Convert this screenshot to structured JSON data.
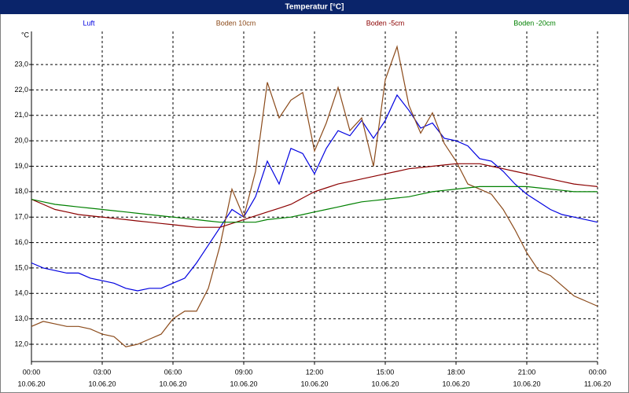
{
  "chart_data": {
    "type": "line",
    "title": "Temperatur [°C]",
    "y_label": "°C",
    "x": [
      0,
      0.5,
      1,
      1.5,
      2,
      2.5,
      3,
      3.5,
      4,
      4.5,
      5,
      5.5,
      6,
      6.5,
      7,
      7.5,
      8,
      8.5,
      9,
      9.5,
      10,
      10.5,
      11,
      11.5,
      12,
      12.5,
      13,
      13.5,
      14,
      14.5,
      15,
      15.5,
      16,
      16.5,
      17,
      17.5,
      18,
      18.5,
      19,
      19.5,
      20,
      20.5,
      21,
      21.5,
      22,
      22.5,
      23,
      23.5,
      24
    ],
    "xlim": [
      0,
      24
    ],
    "xticks": [
      {
        "value": 0,
        "label": "00:00"
      },
      {
        "value": 3,
        "label": "03:00"
      },
      {
        "value": 6,
        "label": "06:00"
      },
      {
        "value": 9,
        "label": "09:00"
      },
      {
        "value": 12,
        "label": "12:00"
      },
      {
        "value": 15,
        "label": "15:00"
      },
      {
        "value": 18,
        "label": "18:00"
      },
      {
        "value": 21,
        "label": "21:00"
      },
      {
        "value": 24,
        "label": "00:00"
      }
    ],
    "xtick_dates": [
      "10.06.20",
      "10.06.20",
      "10.06.20",
      "10.06.20",
      "10.06.20",
      "10.06.20",
      "10.06.20",
      "10.06.20",
      "11.06.20"
    ],
    "ylim": [
      11.32,
      24.3
    ],
    "yticks": [
      {
        "value": 12,
        "label": "12,0"
      },
      {
        "value": 13,
        "label": "13,0"
      },
      {
        "value": 14,
        "label": "14,0"
      },
      {
        "value": 15,
        "label": "15,0"
      },
      {
        "value": 16,
        "label": "16,0"
      },
      {
        "value": 17,
        "label": "17,0"
      },
      {
        "value": 18,
        "label": "18,0"
      },
      {
        "value": 19,
        "label": "19,0"
      },
      {
        "value": 20,
        "label": "20,0"
      },
      {
        "value": 21,
        "label": "21,0"
      },
      {
        "value": 22,
        "label": "22,0"
      },
      {
        "value": 23,
        "label": "23,0"
      }
    ],
    "grid": true,
    "series": [
      {
        "name": "Luft",
        "color": "#0000e0",
        "values": [
          15.2,
          15.0,
          14.9,
          14.8,
          14.8,
          14.6,
          14.5,
          14.4,
          14.2,
          14.1,
          14.2,
          14.2,
          14.4,
          14.6,
          15.2,
          15.9,
          16.6,
          17.3,
          17.0,
          17.8,
          19.2,
          18.3,
          19.7,
          19.5,
          18.7,
          19.7,
          20.4,
          20.2,
          20.8,
          20.1,
          20.8,
          21.8,
          21.2,
          20.5,
          20.7,
          20.1,
          20.0,
          19.8,
          19.3,
          19.2,
          18.8,
          18.3,
          17.9,
          17.6,
          17.3,
          17.1,
          17.0,
          16.9,
          16.8
        ]
      },
      {
        "name": "Boden 10cm",
        "color": "#8b4a1a",
        "values": [
          12.7,
          12.9,
          12.8,
          12.7,
          12.7,
          12.6,
          12.4,
          12.3,
          11.9,
          12.0,
          12.2,
          12.4,
          13.0,
          13.3,
          13.3,
          14.2,
          15.9,
          18.1,
          17.0,
          18.8,
          22.3,
          20.9,
          21.6,
          21.9,
          19.6,
          20.7,
          22.1,
          20.4,
          20.9,
          19.0,
          22.4,
          23.7,
          21.4,
          20.3,
          21.1,
          19.9,
          19.2,
          18.3,
          18.1,
          17.9,
          17.3,
          16.5,
          15.6,
          14.9,
          14.7,
          14.3,
          13.9,
          13.7,
          13.5
        ]
      },
      {
        "name": "Boden -5cm",
        "color": "#8b0000",
        "values": [
          17.7,
          17.5,
          17.3,
          17.2,
          17.1,
          17.05,
          17.0,
          16.95,
          16.9,
          16.85,
          16.8,
          16.75,
          16.7,
          16.65,
          16.6,
          16.6,
          16.6,
          16.75,
          16.9,
          17.05,
          17.2,
          17.35,
          17.5,
          17.75,
          18.0,
          18.15,
          18.3,
          18.4,
          18.5,
          18.6,
          18.7,
          18.8,
          18.9,
          18.95,
          19.0,
          19.05,
          19.1,
          19.1,
          19.1,
          19.0,
          18.9,
          18.8,
          18.7,
          18.6,
          18.5,
          18.4,
          18.3,
          18.25,
          18.2
        ]
      },
      {
        "name": "Boden -20cm",
        "color": "#008000",
        "values": [
          17.7,
          17.6,
          17.5,
          17.45,
          17.4,
          17.35,
          17.3,
          17.25,
          17.2,
          17.15,
          17.1,
          17.05,
          17.0,
          16.95,
          16.9,
          16.85,
          16.8,
          16.8,
          16.8,
          16.8,
          16.9,
          16.95,
          17.0,
          17.1,
          17.2,
          17.3,
          17.4,
          17.5,
          17.6,
          17.65,
          17.7,
          17.75,
          17.8,
          17.9,
          18.0,
          18.05,
          18.1,
          18.15,
          18.2,
          18.2,
          18.2,
          18.2,
          18.2,
          18.15,
          18.1,
          18.05,
          18.0,
          18.0,
          18.0
        ]
      }
    ]
  }
}
